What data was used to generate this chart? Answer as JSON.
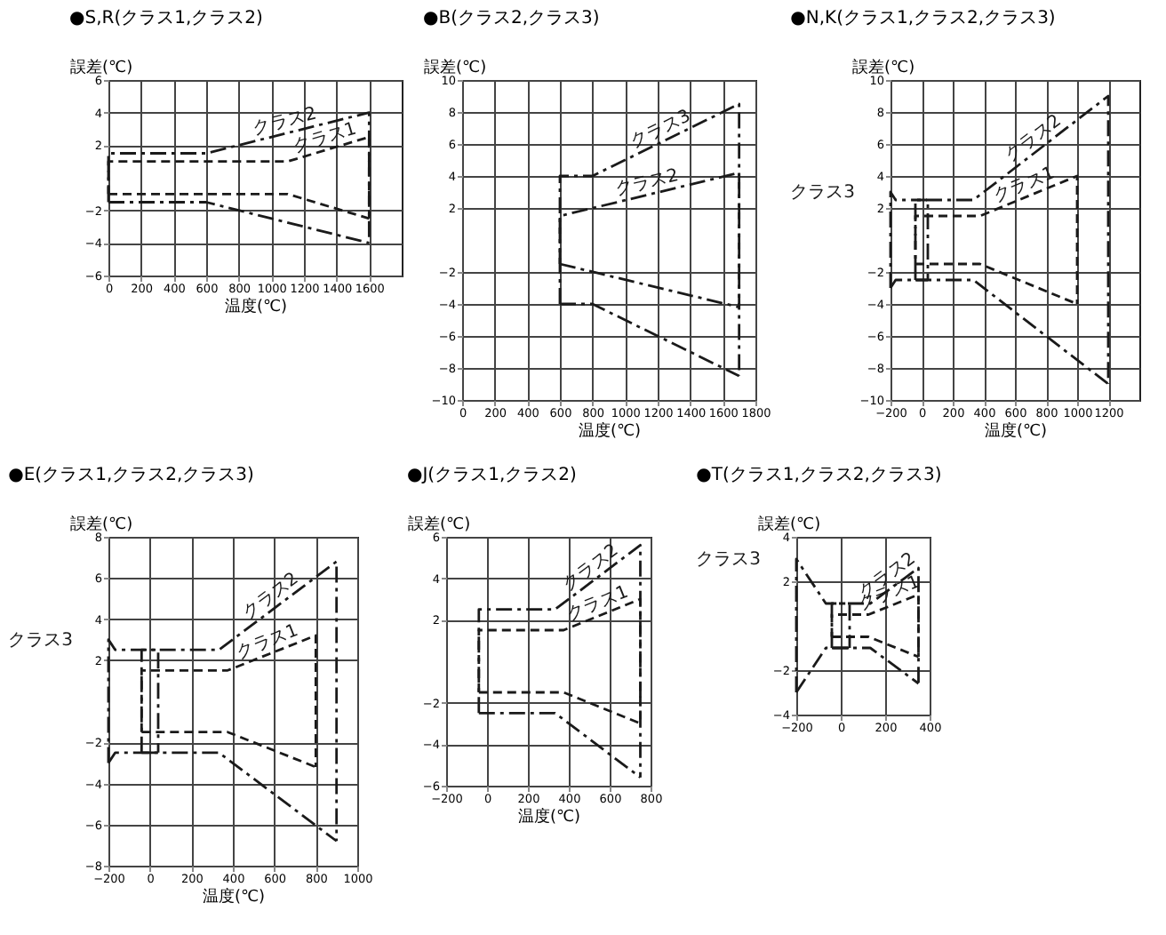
{
  "chart_data": [
    {
      "type": "line",
      "title": "●S,R(クラス1,クラス2)",
      "xlabel": "温度(℃)",
      "ylabel": "誤差(℃)",
      "xlim": [
        0,
        1800
      ],
      "ylim": [
        -6,
        6
      ],
      "xticks": [
        0,
        200,
        400,
        600,
        800,
        1000,
        1200,
        1400,
        1600
      ],
      "yticks": [
        -6,
        -4,
        -2,
        2,
        4,
        6
      ],
      "grid": true,
      "series": [
        {
          "name": "クラス1",
          "color": "#1a1a1a",
          "line_style": "dashed",
          "x": [
            0,
            0,
            1100,
            1600,
            1600
          ],
          "values": [
            -1,
            1,
            1,
            2.5,
            -2.5
          ]
        },
        {
          "color": "#1a1a1a",
          "line_style": "dashed",
          "x": [
            0,
            1100,
            1600
          ],
          "values": [
            -1,
            -1,
            -2.5
          ]
        },
        {
          "name": "クラス2",
          "color": "#1a1a1a",
          "line_style": "dashdot",
          "x": [
            0,
            0,
            600,
            1600,
            1600
          ],
          "values": [
            -1.5,
            1.5,
            1.5,
            4,
            -4
          ]
        },
        {
          "color": "#1a1a1a",
          "line_style": "dashdot",
          "x": [
            0,
            600,
            1600
          ],
          "values": [
            -1.5,
            -1.5,
            -4
          ]
        }
      ]
    },
    {
      "type": "line",
      "title": "●B(クラス2,クラス3)",
      "xlabel": "温度(℃)",
      "ylabel": "誤差(℃)",
      "xlim": [
        0,
        1800
      ],
      "ylim": [
        -10,
        10
      ],
      "xticks": [
        0,
        200,
        400,
        600,
        800,
        1000,
        1200,
        1400,
        1600,
        1800
      ],
      "yticks": [
        -10,
        -8,
        -6,
        -4,
        -2,
        2,
        4,
        6,
        8,
        10
      ],
      "grid": true,
      "series": [
        {
          "name": "クラス2",
          "color": "#1a1a1a",
          "line_style": "dashdot",
          "x": [
            600,
            600,
            600,
            1700,
            1700
          ],
          "values": [
            -1.5,
            1.5,
            1.5,
            4.2,
            -4.2
          ]
        },
        {
          "color": "#1a1a1a",
          "line_style": "dashdot",
          "x": [
            600,
            1700
          ],
          "values": [
            -1.5,
            -4.2
          ]
        },
        {
          "name": "クラス3",
          "color": "#1a1a1a",
          "line_style": "dashdot",
          "x": [
            600,
            600,
            800,
            1700,
            1700
          ],
          "values": [
            -4,
            4,
            4,
            8.5,
            -8.5
          ]
        },
        {
          "color": "#1a1a1a",
          "line_style": "dashdot",
          "x": [
            600,
            800,
            1700
          ],
          "values": [
            -4,
            -4,
            -8.5
          ]
        }
      ]
    },
    {
      "type": "line",
      "title": "●N,K(クラス1,クラス2,クラス3)",
      "xlabel": "温度(℃)",
      "ylabel": "誤差(℃)",
      "xlim": [
        -200,
        1400
      ],
      "ylim": [
        -10,
        10
      ],
      "xticks": [
        -200,
        0,
        200,
        400,
        600,
        800,
        1000,
        1200
      ],
      "yticks": [
        -10,
        -8,
        -6,
        -4,
        -2,
        2,
        4,
        6,
        8,
        10
      ],
      "grid": true,
      "series": [
        {
          "name": "クラス1",
          "color": "#1a1a1a",
          "line_style": "dashed",
          "x": [
            -40,
            -40,
            375,
            1000,
            1000
          ],
          "values": [
            -1.5,
            1.5,
            1.5,
            4,
            -4
          ]
        },
        {
          "color": "#1a1a1a",
          "line_style": "dashed",
          "x": [
            -40,
            375,
            1000
          ],
          "values": [
            -1.5,
            -1.5,
            -4
          ]
        },
        {
          "name": "クラス2",
          "color": "#1a1a1a",
          "line_style": "dashdot",
          "x": [
            -40,
            -40,
            333,
            1200,
            1200
          ],
          "values": [
            -2.5,
            2.5,
            2.5,
            9,
            -9
          ]
        },
        {
          "color": "#1a1a1a",
          "line_style": "dashdot",
          "x": [
            -40,
            333,
            1200
          ],
          "values": [
            -2.5,
            -2.5,
            -9
          ]
        },
        {
          "name": "クラス3",
          "color": "#1a1a1a",
          "line_style": "dashdot",
          "x": [
            -200,
            -200,
            -167,
            40,
            40
          ],
          "values": [
            -3,
            3,
            2.5,
            2.5,
            -2.5
          ]
        },
        {
          "color": "#1a1a1a",
          "line_style": "dashdot",
          "x": [
            -200,
            -167,
            40
          ],
          "values": [
            -3,
            -2.5,
            -2.5
          ]
        }
      ]
    },
    {
      "type": "line",
      "title": "●E(クラス1,クラス2,クラス3)",
      "xlabel": "温度(℃)",
      "ylabel": "誤差(℃)",
      "xlim": [
        -200,
        1000
      ],
      "ylim": [
        -8,
        8
      ],
      "xticks": [
        -200,
        0,
        200,
        400,
        600,
        800,
        1000
      ],
      "yticks": [
        -8,
        -6,
        -4,
        -2,
        2,
        4,
        6,
        8
      ],
      "grid": true,
      "series": [
        {
          "name": "クラス1",
          "color": "#1a1a1a",
          "line_style": "dashed",
          "x": [
            -40,
            -40,
            375,
            800,
            800
          ],
          "values": [
            -1.5,
            1.5,
            1.5,
            3.2,
            -3.2
          ]
        },
        {
          "color": "#1a1a1a",
          "line_style": "dashed",
          "x": [
            -40,
            375,
            800
          ],
          "values": [
            -1.5,
            -1.5,
            -3.2
          ]
        },
        {
          "name": "クラス2",
          "color": "#1a1a1a",
          "line_style": "dashdot",
          "x": [
            -40,
            -40,
            333,
            900,
            900
          ],
          "values": [
            -2.5,
            2.5,
            2.5,
            6.8,
            -6.8
          ]
        },
        {
          "color": "#1a1a1a",
          "line_style": "dashdot",
          "x": [
            -40,
            333,
            900
          ],
          "values": [
            -2.5,
            -2.5,
            -6.8
          ]
        },
        {
          "name": "クラス3",
          "color": "#1a1a1a",
          "line_style": "dashdot",
          "x": [
            -200,
            -200,
            -167,
            40,
            40
          ],
          "values": [
            -3,
            3,
            2.5,
            2.5,
            -2.5
          ]
        },
        {
          "color": "#1a1a1a",
          "line_style": "dashdot",
          "x": [
            -200,
            -167,
            40
          ],
          "values": [
            -3,
            -2.5,
            -2.5
          ]
        }
      ]
    },
    {
      "type": "line",
      "title": "●J(クラス1,クラス2)",
      "xlabel": "温度(℃)",
      "ylabel": "誤差(℃)",
      "xlim": [
        -200,
        800
      ],
      "ylim": [
        -6,
        6
      ],
      "xticks": [
        -200,
        0,
        200,
        400,
        600,
        800
      ],
      "yticks": [
        -6,
        -4,
        -2,
        2,
        4,
        6
      ],
      "grid": true,
      "series": [
        {
          "name": "クラス1",
          "color": "#1a1a1a",
          "line_style": "dashed",
          "x": [
            -40,
            -40,
            375,
            750,
            750
          ],
          "values": [
            -1.5,
            1.5,
            1.5,
            3,
            -3
          ]
        },
        {
          "color": "#1a1a1a",
          "line_style": "dashed",
          "x": [
            -40,
            375,
            750
          ],
          "values": [
            -1.5,
            -1.5,
            -3
          ]
        },
        {
          "name": "クラス2",
          "color": "#1a1a1a",
          "line_style": "dashdot",
          "x": [
            -40,
            -40,
            333,
            750,
            750
          ],
          "values": [
            -2.5,
            2.5,
            2.5,
            5.6,
            -5.6
          ]
        },
        {
          "color": "#1a1a1a",
          "line_style": "dashdot",
          "x": [
            -40,
            333,
            750
          ],
          "values": [
            -2.5,
            -2.5,
            -5.6
          ]
        }
      ]
    },
    {
      "type": "line",
      "title": "●T(クラス1,クラス2,クラス3)",
      "ylabel": "誤差(℃)",
      "xlim": [
        -200,
        400
      ],
      "ylim": [
        -4,
        4
      ],
      "xticks": [
        -200,
        0,
        200,
        400
      ],
      "yticks": [
        -4,
        -2,
        2,
        4
      ],
      "grid": true,
      "series": [
        {
          "name": "クラス1",
          "color": "#1a1a1a",
          "line_style": "dashed",
          "x": [
            -40,
            -40,
            125,
            350,
            350
          ],
          "values": [
            -0.5,
            0.5,
            0.5,
            1.4,
            -1.4
          ]
        },
        {
          "color": "#1a1a1a",
          "line_style": "dashed",
          "x": [
            -40,
            125,
            350
          ],
          "values": [
            -0.5,
            -0.5,
            -1.4
          ]
        },
        {
          "name": "クラス2",
          "color": "#1a1a1a",
          "line_style": "dashdot",
          "x": [
            -40,
            -40,
            133,
            350,
            350
          ],
          "values": [
            -1,
            1,
            1,
            2.6,
            -2.6
          ]
        },
        {
          "color": "#1a1a1a",
          "line_style": "dashdot",
          "x": [
            -40,
            133,
            350
          ],
          "values": [
            -1,
            -1,
            -2.6
          ]
        },
        {
          "name": "クラス3",
          "color": "#1a1a1a",
          "line_style": "dashdot",
          "x": [
            -200,
            -200,
            -67,
            40,
            40
          ],
          "values": [
            -3,
            3,
            1,
            1,
            -1
          ]
        },
        {
          "color": "#1a1a1a",
          "line_style": "dashdot",
          "x": [
            -200,
            -67,
            40
          ],
          "values": [
            -3,
            -1,
            -1
          ]
        }
      ]
    }
  ]
}
